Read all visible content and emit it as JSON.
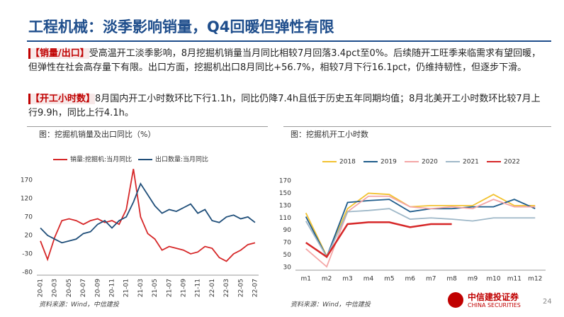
{
  "header": {
    "title": "工程机械：淡季影响销量，Q4回暖但弹性有限"
  },
  "paragraphs": [
    {
      "label": "【销量/出口】",
      "text": "受高温开工淡季影响，8月挖掘机销量当月同比相较7月回落3.4pct至0%。后续随开工旺季来临需求有望回暖，但弹性在社会高存量下有限。出口方面，挖掘机出口8月同比+56.7%，相较7月下行16.1pct，仍维持韧性，但逐步下滑。"
    },
    {
      "label": "【开工小时数】",
      "text": "8月国内开工小时数环比下行1.1h，同比仍降7.4h且低于历史五年同期均值；8月北美开工小时数环比较7月上行9.9h，同比上行4.1h。"
    }
  ],
  "chart_data": [
    {
      "type": "line",
      "title": "图：挖掘机销量及出口同比（%）",
      "source": "资料来源：Wind，中信建投",
      "categories": [
        "20-01",
        null,
        "20-03",
        null,
        "20-05",
        null,
        "20-07",
        null,
        "20-09",
        null,
        "20-11",
        null,
        "21-01",
        null,
        "21-03",
        null,
        "21-05",
        null,
        "21-07",
        null,
        "21-09",
        null,
        "21-11",
        null,
        "22-01",
        null,
        "22-03",
        null,
        "22-05",
        null,
        "22-07"
      ],
      "series": [
        {
          "name": "销量:挖掘机:当月同比",
          "color": "#d62728",
          "values": [
            5,
            -45,
            15,
            60,
            65,
            60,
            50,
            60,
            65,
            55,
            60,
            50,
            90,
            200,
            70,
            25,
            10,
            -20,
            -10,
            -15,
            -20,
            -30,
            -25,
            -10,
            -15,
            -40,
            -50,
            -30,
            -20,
            -5,
            0
          ]
        },
        {
          "name": "出口数量:当月同比",
          "color": "#1f4e79",
          "values": [
            40,
            20,
            10,
            0,
            5,
            10,
            25,
            30,
            50,
            60,
            40,
            60,
            70,
            110,
            160,
            130,
            100,
            80,
            90,
            85,
            95,
            105,
            80,
            90,
            60,
            55,
            70,
            75,
            65,
            70,
            55
          ]
        }
      ],
      "ylim": [
        -80,
        210
      ],
      "yticks": [
        -80,
        -30,
        20,
        70,
        120,
        170
      ]
    },
    {
      "type": "line",
      "title": "图：挖掘机开工小时数",
      "source": "资料来源：Wind，中信建投",
      "categories": [
        "m1",
        "m2",
        "m3",
        "m4",
        "m5",
        "m6",
        "m7",
        "m8",
        "m9",
        "m10",
        "m11",
        "m12"
      ],
      "series": [
        {
          "name": "2018",
          "color": "#f2c230",
          "values": [
            118,
            48,
            125,
            150,
            148,
            128,
            130,
            130,
            130,
            148,
            130,
            130
          ]
        },
        {
          "name": "2019",
          "color": "#1f5c8b",
          "values": [
            112,
            47,
            135,
            138,
            140,
            120,
            125,
            125,
            128,
            128,
            140,
            125
          ]
        },
        {
          "name": "2020",
          "color": "#f4a6a6",
          "values": [
            60,
            31,
            120,
            145,
            145,
            128,
            125,
            128,
            125,
            140,
            128,
            128
          ]
        },
        {
          "name": "2021",
          "color": "#9fb8c8",
          "values": [
            105,
            47,
            120,
            122,
            125,
            108,
            110,
            108,
            105,
            110,
            110,
            110
          ]
        },
        {
          "name": "2022",
          "color": "#d62728",
          "values": [
            70,
            47,
            100,
            103,
            103,
            95,
            100,
            100,
            null,
            null,
            null,
            null
          ]
        }
      ],
      "ylim": [
        30,
        170
      ],
      "yticks": [
        30,
        50,
        70,
        90,
        110,
        130,
        150,
        170
      ]
    }
  ],
  "footer": {
    "page": "24",
    "logo_cn": "中信建投证券",
    "logo_en": "CHINA SECURITIES"
  }
}
